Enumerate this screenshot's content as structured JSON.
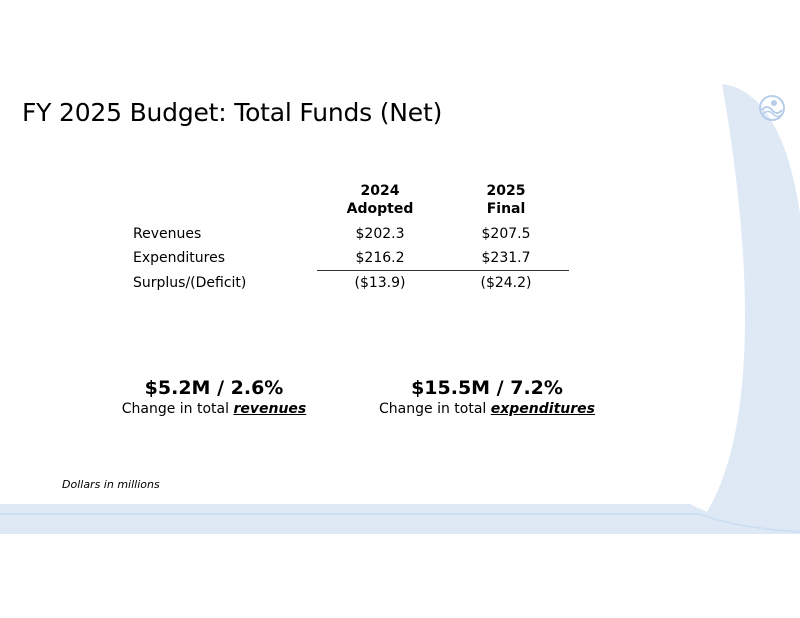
{
  "slide": {
    "title": "FY 2025 Budget: Total Funds (Net)",
    "colors": {
      "accent_light": "#dfe9f6",
      "accent_mid": "#c9daf0",
      "text": "#000000"
    }
  },
  "logo": {
    "icon": "city-seal-icon"
  },
  "table": {
    "headers": [
      {
        "year": "2024",
        "label": "Adopted"
      },
      {
        "year": "2025",
        "label": "Final"
      }
    ],
    "rows": [
      {
        "label": "Revenues",
        "v2024": "$202.3",
        "v2025": "$207.5"
      },
      {
        "label": "Expenditures",
        "v2024": "$216.2",
        "v2025": "$231.7"
      },
      {
        "label": "Surplus/(Deficit)",
        "v2024": "($13.9)",
        "v2025": "($24.2)"
      }
    ]
  },
  "kpis": {
    "revenues": {
      "value": "$5.2M / 2.6%",
      "prefix": "Change in total",
      "emphasis": "revenues"
    },
    "expenditures": {
      "value": "$15.5M / 7.2%",
      "prefix": "Change in total",
      "emphasis": "expenditures"
    }
  },
  "footnote": "Dollars in millions"
}
